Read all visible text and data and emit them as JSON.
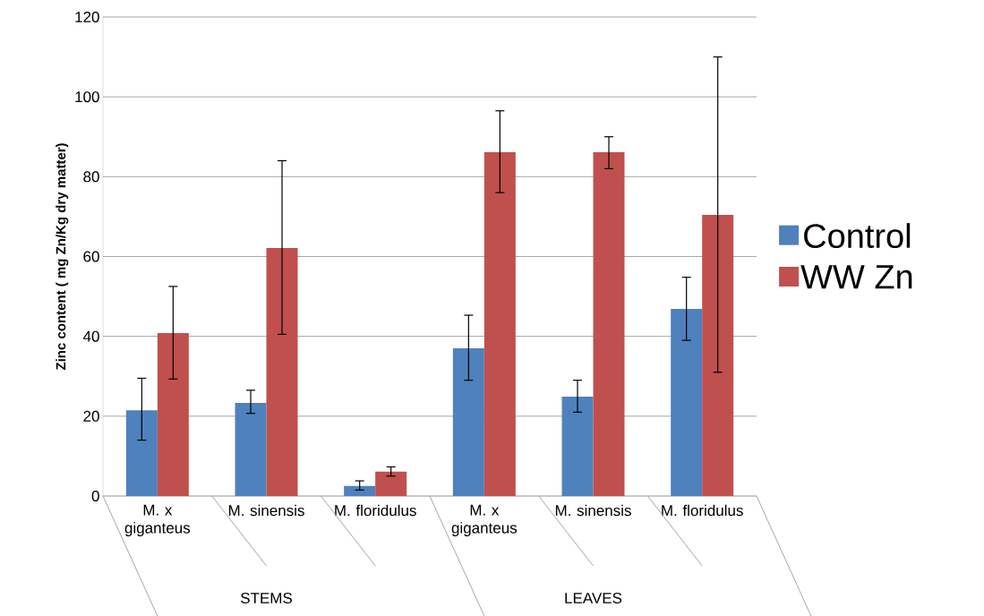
{
  "chart_data": {
    "type": "bar",
    "ylabel": "Zinc content ( mg Zn/Kg dry matter)",
    "categories": [
      "M. x giganteus",
      "M. sinensis",
      "M. floridulus",
      "M. x giganteus",
      "M. sinensis",
      "M. floridulus"
    ],
    "series": [
      {
        "name": "Control",
        "color": "#4f81bd",
        "values": [
          21.5,
          23.3,
          2.5,
          37,
          24.9,
          46.9
        ],
        "errors": [
          [
            14,
            29.5
          ],
          [
            20.7,
            26.5
          ],
          [
            1.5,
            3.8
          ],
          [
            29,
            45.3
          ],
          [
            21,
            29
          ],
          [
            39,
            54.8
          ]
        ]
      },
      {
        "name": "WW Zn",
        "color": "#c0504d",
        "values": [
          40.8,
          62.1,
          6.1,
          86.1,
          86.1,
          70.4
        ],
        "errors": [
          [
            29.3,
            52.5
          ],
          [
            40.5,
            84
          ],
          [
            5,
            7.3
          ],
          [
            76,
            96.5
          ],
          [
            82,
            90
          ],
          [
            31,
            110
          ]
        ]
      }
    ],
    "ylim": [
      0,
      120
    ],
    "yticks": [
      0,
      20,
      40,
      60,
      80,
      100,
      120
    ],
    "grid": "y",
    "legend": "right",
    "annotations": [
      "STEMS",
      "LEAVES"
    ]
  }
}
